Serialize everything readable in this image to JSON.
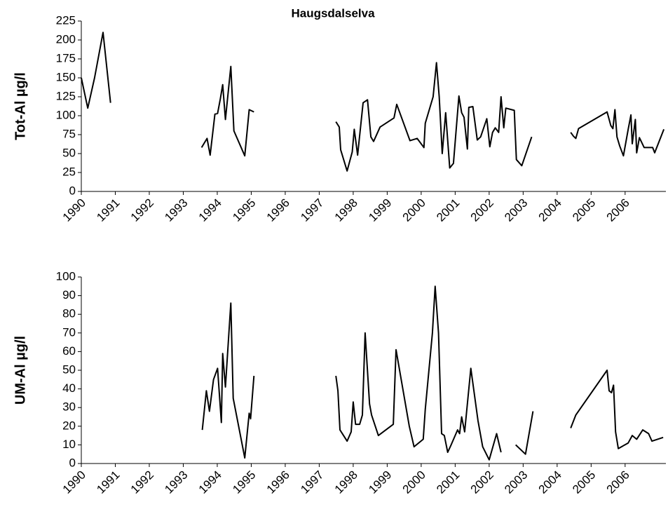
{
  "chart_data": [
    {
      "type": "line",
      "title": "Haugsdalselva",
      "y_label": "Tot-Al µg/l",
      "x": [
        1990.0,
        1990.19,
        1990.39,
        1990.64,
        1990.86,
        null,
        1993.54,
        1993.7,
        1993.79,
        1993.93,
        1994.01,
        1994.09,
        1994.16,
        1994.24,
        1994.4,
        1994.49,
        1994.81,
        1994.94,
        1995.08,
        null,
        1997.49,
        1997.59,
        1997.63,
        1997.82,
        1997.97,
        1998.03,
        1998.13,
        1998.29,
        1998.42,
        1998.52,
        1998.6,
        1998.79,
        1999.2,
        1999.28,
        1999.67,
        1999.88,
        2000.08,
        2000.12,
        2000.35,
        2000.45,
        2000.53,
        2000.62,
        2000.72,
        2000.84,
        2000.95,
        2001.11,
        2001.19,
        2001.26,
        2001.36,
        2001.4,
        2001.52,
        2001.65,
        2001.75,
        2001.93,
        2002.02,
        2002.1,
        2002.18,
        2002.28,
        2002.35,
        2002.43,
        2002.49,
        2002.74,
        2002.8,
        2002.96,
        2003.25,
        null,
        2004.4,
        2004.48,
        2004.55,
        2004.63,
        2005.47,
        2005.58,
        2005.64,
        2005.7,
        2005.76,
        2005.84,
        2005.95,
        2006.09,
        2006.17,
        2006.21,
        2006.3,
        2006.34,
        2006.42,
        2006.56,
        2006.81,
        2006.87,
        2007.14
      ],
      "series": [
        {
          "color": "#000000",
          "values": [
            150,
            110,
            150,
            210,
            117,
            null,
            58,
            70,
            48,
            102,
            103,
            122,
            141,
            95,
            165,
            80,
            47,
            108,
            105,
            null,
            92,
            85,
            55,
            27,
            52,
            82,
            48,
            117,
            121,
            72,
            66,
            85,
            97,
            115,
            67,
            70,
            58,
            90,
            125,
            170,
            125,
            50,
            104,
            31,
            37,
            126,
            104,
            98,
            56,
            111,
            112,
            68,
            72,
            96,
            59,
            78,
            84,
            78,
            125,
            84,
            110,
            107,
            42,
            34,
            72,
            null,
            78,
            73,
            70,
            83,
            105,
            87,
            83,
            108,
            72,
            60,
            47,
            82,
            101,
            63,
            95,
            51,
            71,
            58,
            58,
            51,
            82
          ]
        }
      ],
      "xlim": [
        1990,
        2007.2
      ],
      "xticks": [
        1990,
        1991,
        1992,
        1993,
        1994,
        1995,
        1996,
        1997,
        1998,
        1999,
        2000,
        2001,
        2002,
        2003,
        2004,
        2005,
        2006
      ],
      "ylim": [
        0,
        225
      ],
      "yticks": [
        0,
        25,
        50,
        75,
        100,
        125,
        150,
        175,
        200,
        225
      ]
    },
    {
      "type": "line",
      "y_label": "UM-Al µg/l",
      "x": [
        1993.56,
        1993.68,
        1993.77,
        1993.89,
        1994.01,
        1994.12,
        1994.16,
        1994.24,
        1994.4,
        1994.47,
        1994.81,
        1994.94,
        1994.98,
        1995.08,
        null,
        1997.49,
        1997.55,
        1997.61,
        1997.82,
        1997.94,
        1998.0,
        1998.07,
        1998.19,
        1998.27,
        1998.35,
        1998.48,
        1998.54,
        1998.74,
        1999.18,
        1999.26,
        1999.65,
        1999.79,
        2000.06,
        2000.12,
        2000.33,
        2000.41,
        2000.51,
        2000.6,
        2000.68,
        2000.78,
        2000.88,
        2001.07,
        2001.13,
        2001.19,
        2001.28,
        2001.46,
        2001.67,
        2001.81,
        2002.0,
        2002.22,
        2002.35,
        null,
        2002.78,
        2003.07,
        2003.29,
        null,
        2004.4,
        2004.55,
        2005.47,
        2005.53,
        2005.6,
        2005.66,
        2005.72,
        2005.8,
        2006.09,
        2006.21,
        2006.34,
        2006.52,
        2006.69,
        2006.79,
        2007.12
      ],
      "series": [
        {
          "color": "#000000",
          "values": [
            18,
            39,
            28,
            45,
            51,
            22,
            59,
            41,
            86,
            35,
            3,
            27,
            24,
            47,
            null,
            47,
            39,
            18,
            12,
            17,
            33,
            21,
            21,
            26,
            70,
            32,
            26,
            15,
            21,
            61,
            20,
            9,
            13,
            29,
            70,
            95,
            70,
            16,
            15,
            6,
            10,
            18,
            16,
            25,
            17,
            51,
            23,
            9,
            2,
            16,
            6,
            null,
            10,
            5,
            28,
            null,
            19,
            26,
            50,
            39,
            38,
            42,
            17,
            8,
            11,
            15,
            13,
            18,
            16,
            12,
            14
          ]
        }
      ],
      "xlim": [
        1990,
        2007.2
      ],
      "xticks": [
        1990,
        1991,
        1992,
        1993,
        1994,
        1995,
        1996,
        1997,
        1998,
        1999,
        2000,
        2001,
        2002,
        2003,
        2004,
        2005,
        2006
      ],
      "ylim": [
        0,
        100
      ],
      "yticks": [
        0,
        10,
        20,
        30,
        40,
        50,
        60,
        70,
        80,
        90,
        100
      ]
    }
  ]
}
